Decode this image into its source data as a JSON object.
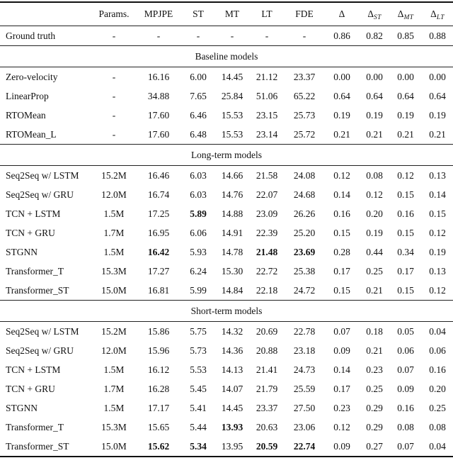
{
  "table": {
    "headers": [
      {
        "label": "",
        "sub": ""
      },
      {
        "label": "Params.",
        "sub": ""
      },
      {
        "label": "MPJPE",
        "sub": ""
      },
      {
        "label": "ST",
        "sub": ""
      },
      {
        "label": "MT",
        "sub": ""
      },
      {
        "label": "LT",
        "sub": ""
      },
      {
        "label": "FDE",
        "sub": ""
      },
      {
        "label": "Δ",
        "sub": ""
      },
      {
        "label": "Δ",
        "sub": "ST"
      },
      {
        "label": "Δ",
        "sub": "MT"
      },
      {
        "label": "Δ",
        "sub": "LT"
      }
    ],
    "lead_rows": [
      {
        "model": "Ground truth",
        "values": [
          "-",
          "-",
          "-",
          "-",
          "-",
          "-",
          "0.86",
          "0.82",
          "0.85",
          "0.88"
        ],
        "bold": []
      }
    ],
    "sections": [
      {
        "title": "Baseline models",
        "rows": [
          {
            "model": "Zero-velocity",
            "values": [
              "-",
              "16.16",
              "6.00",
              "14.45",
              "21.12",
              "23.37",
              "0.00",
              "0.00",
              "0.00",
              "0.00"
            ],
            "bold": []
          },
          {
            "model": "LinearProp",
            "values": [
              "-",
              "34.88",
              "7.65",
              "25.84",
              "51.06",
              "65.22",
              "0.64",
              "0.64",
              "0.64",
              "0.64"
            ],
            "bold": []
          },
          {
            "model": "RTOMean",
            "values": [
              "-",
              "17.60",
              "6.46",
              "15.53",
              "23.15",
              "25.73",
              "0.19",
              "0.19",
              "0.19",
              "0.19"
            ],
            "bold": []
          },
          {
            "model": "RTOMean_L",
            "values": [
              "-",
              "17.60",
              "6.48",
              "15.53",
              "23.14",
              "25.72",
              "0.21",
              "0.21",
              "0.21",
              "0.21"
            ],
            "bold": []
          }
        ]
      },
      {
        "title": "Long-term models",
        "rows": [
          {
            "model": "Seq2Seq w/ LSTM",
            "values": [
              "15.2M",
              "16.46",
              "6.03",
              "14.66",
              "21.58",
              "24.08",
              "0.12",
              "0.08",
              "0.12",
              "0.13"
            ],
            "bold": []
          },
          {
            "model": "Seq2Seq w/ GRU",
            "values": [
              "12.0M",
              "16.74",
              "6.03",
              "14.76",
              "22.07",
              "24.68",
              "0.14",
              "0.12",
              "0.15",
              "0.14"
            ],
            "bold": []
          },
          {
            "model": "TCN + LSTM",
            "values": [
              "1.5M",
              "17.25",
              "5.89",
              "14.88",
              "23.09",
              "26.26",
              "0.16",
              "0.20",
              "0.16",
              "0.15"
            ],
            "bold": [
              2
            ]
          },
          {
            "model": "TCN + GRU",
            "values": [
              "1.7M",
              "16.95",
              "6.06",
              "14.91",
              "22.39",
              "25.20",
              "0.15",
              "0.19",
              "0.15",
              "0.12"
            ],
            "bold": []
          },
          {
            "model": "STGNN",
            "values": [
              "1.5M",
              "16.42",
              "5.93",
              "14.78",
              "21.48",
              "23.69",
              "0.28",
              "0.44",
              "0.34",
              "0.19"
            ],
            "bold": [
              1,
              4,
              5
            ]
          },
          {
            "model": "Transformer_T",
            "values": [
              "15.3M",
              "17.27",
              "6.24",
              "15.30",
              "22.72",
              "25.38",
              "0.17",
              "0.25",
              "0.17",
              "0.13"
            ],
            "bold": []
          },
          {
            "model": "Transformer_ST",
            "values": [
              "15.0M",
              "16.81",
              "5.99",
              "14.84",
              "22.18",
              "24.72",
              "0.15",
              "0.21",
              "0.15",
              "0.12"
            ],
            "bold": []
          }
        ]
      },
      {
        "title": "Short-term models",
        "rows": [
          {
            "model": "Seq2Seq w/ LSTM",
            "values": [
              "15.2M",
              "15.86",
              "5.75",
              "14.32",
              "20.69",
              "22.78",
              "0.07",
              "0.18",
              "0.05",
              "0.04"
            ],
            "bold": []
          },
          {
            "model": "Seq2Seq w/ GRU",
            "values": [
              "12.0M",
              "15.96",
              "5.73",
              "14.36",
              "20.88",
              "23.18",
              "0.09",
              "0.21",
              "0.06",
              "0.06"
            ],
            "bold": []
          },
          {
            "model": "TCN + LSTM",
            "values": [
              "1.5M",
              "16.12",
              "5.53",
              "14.13",
              "21.41",
              "24.73",
              "0.14",
              "0.23",
              "0.07",
              "0.16"
            ],
            "bold": []
          },
          {
            "model": "TCN + GRU",
            "values": [
              "1.7M",
              "16.28",
              "5.45",
              "14.07",
              "21.79",
              "25.59",
              "0.17",
              "0.25",
              "0.09",
              "0.20"
            ],
            "bold": []
          },
          {
            "model": "STGNN",
            "values": [
              "1.5M",
              "17.17",
              "5.41",
              "14.45",
              "23.37",
              "27.50",
              "0.23",
              "0.29",
              "0.16",
              "0.25"
            ],
            "bold": []
          },
          {
            "model": "Transformer_T",
            "values": [
              "15.3M",
              "15.65",
              "5.44",
              "13.93",
              "20.63",
              "23.06",
              "0.12",
              "0.29",
              "0.08",
              "0.08"
            ],
            "bold": [
              3
            ]
          },
          {
            "model": "Transformer_ST",
            "values": [
              "15.0M",
              "15.62",
              "5.34",
              "13.95",
              "20.59",
              "22.74",
              "0.09",
              "0.27",
              "0.07",
              "0.04"
            ],
            "bold": [
              1,
              2,
              4,
              5
            ]
          }
        ]
      }
    ]
  }
}
